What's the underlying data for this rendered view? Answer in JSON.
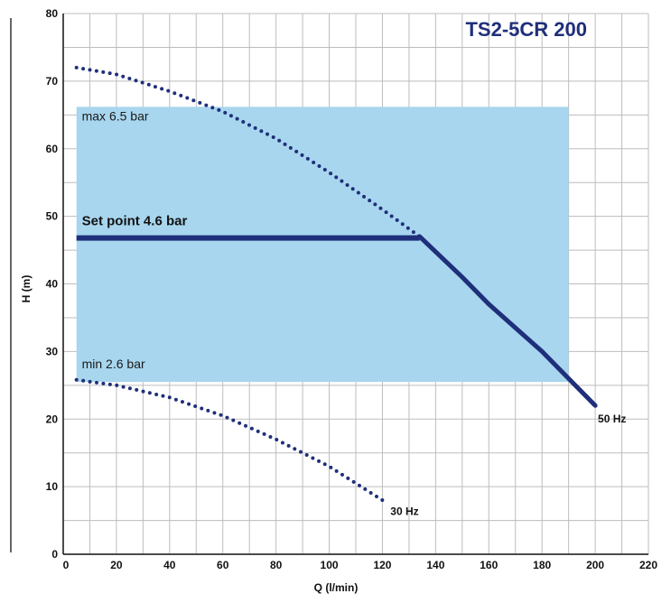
{
  "chart_data": {
    "type": "line",
    "title": "TS2-5CR 200",
    "xlabel": "Q (l/min)",
    "ylabel": "H (m)",
    "xlim": [
      0,
      220
    ],
    "ylim": [
      0,
      80
    ],
    "x_ticks": [
      "0",
      "20",
      "40",
      "60",
      "80",
      "100",
      "120",
      "140",
      "160",
      "180",
      "200",
      "220"
    ],
    "y_ticks": [
      "0",
      "10",
      "20",
      "30",
      "40",
      "50",
      "60",
      "70",
      "80"
    ],
    "grid": true,
    "x_grid_step": 10,
    "y_grid_step": 5,
    "colors": {
      "operating_band": "#a8d6ee",
      "set_point_line": "#1f2f7a",
      "curve_dots": "#1f2f7a",
      "title": "#1f2f7a",
      "grid": "#bdbdbd"
    },
    "operating_band": {
      "x": [
        5,
        190
      ],
      "y": [
        25.5,
        66.2
      ]
    },
    "series": [
      {
        "name": "50 Hz",
        "style": "dotted",
        "points": [
          [
            5,
            72
          ],
          [
            20,
            71
          ],
          [
            40,
            68.5
          ],
          [
            60,
            65.5
          ],
          [
            80,
            61.5
          ],
          [
            100,
            56.5
          ],
          [
            120,
            51
          ],
          [
            134,
            47
          ]
        ]
      },
      {
        "name": "50 Hz",
        "style": "solid",
        "points": [
          [
            134,
            47
          ],
          [
            150,
            41
          ],
          [
            160,
            37
          ],
          [
            180,
            30
          ],
          [
            200,
            22
          ]
        ]
      },
      {
        "name": "",
        "style": "solid-thick",
        "points": [
          [
            5,
            46.8
          ],
          [
            134,
            46.8
          ]
        ]
      },
      {
        "name": "30 Hz",
        "style": "dotted",
        "points": [
          [
            5,
            25.8
          ],
          [
            20,
            25
          ],
          [
            40,
            23.2
          ],
          [
            60,
            20.5
          ],
          [
            80,
            17
          ],
          [
            100,
            13
          ],
          [
            120,
            8
          ]
        ]
      }
    ],
    "annotations": [
      {
        "id": "max",
        "text": "max 6.5 bar",
        "x": 7,
        "y": 64.2,
        "style": "normal"
      },
      {
        "id": "setpoint",
        "text": "Set   point 4.6 bar",
        "x": 7,
        "y": 48.7,
        "style": "bold"
      },
      {
        "id": "min",
        "text": "min   2.6 bar",
        "x": 7,
        "y": 27.5,
        "style": "normal"
      },
      {
        "id": "hz50",
        "text": "50 Hz",
        "x": 201,
        "y": 19.5,
        "style": "bold"
      },
      {
        "id": "hz30",
        "text": "30   Hz",
        "x": 123,
        "y": 5.8,
        "style": "bold"
      }
    ]
  }
}
